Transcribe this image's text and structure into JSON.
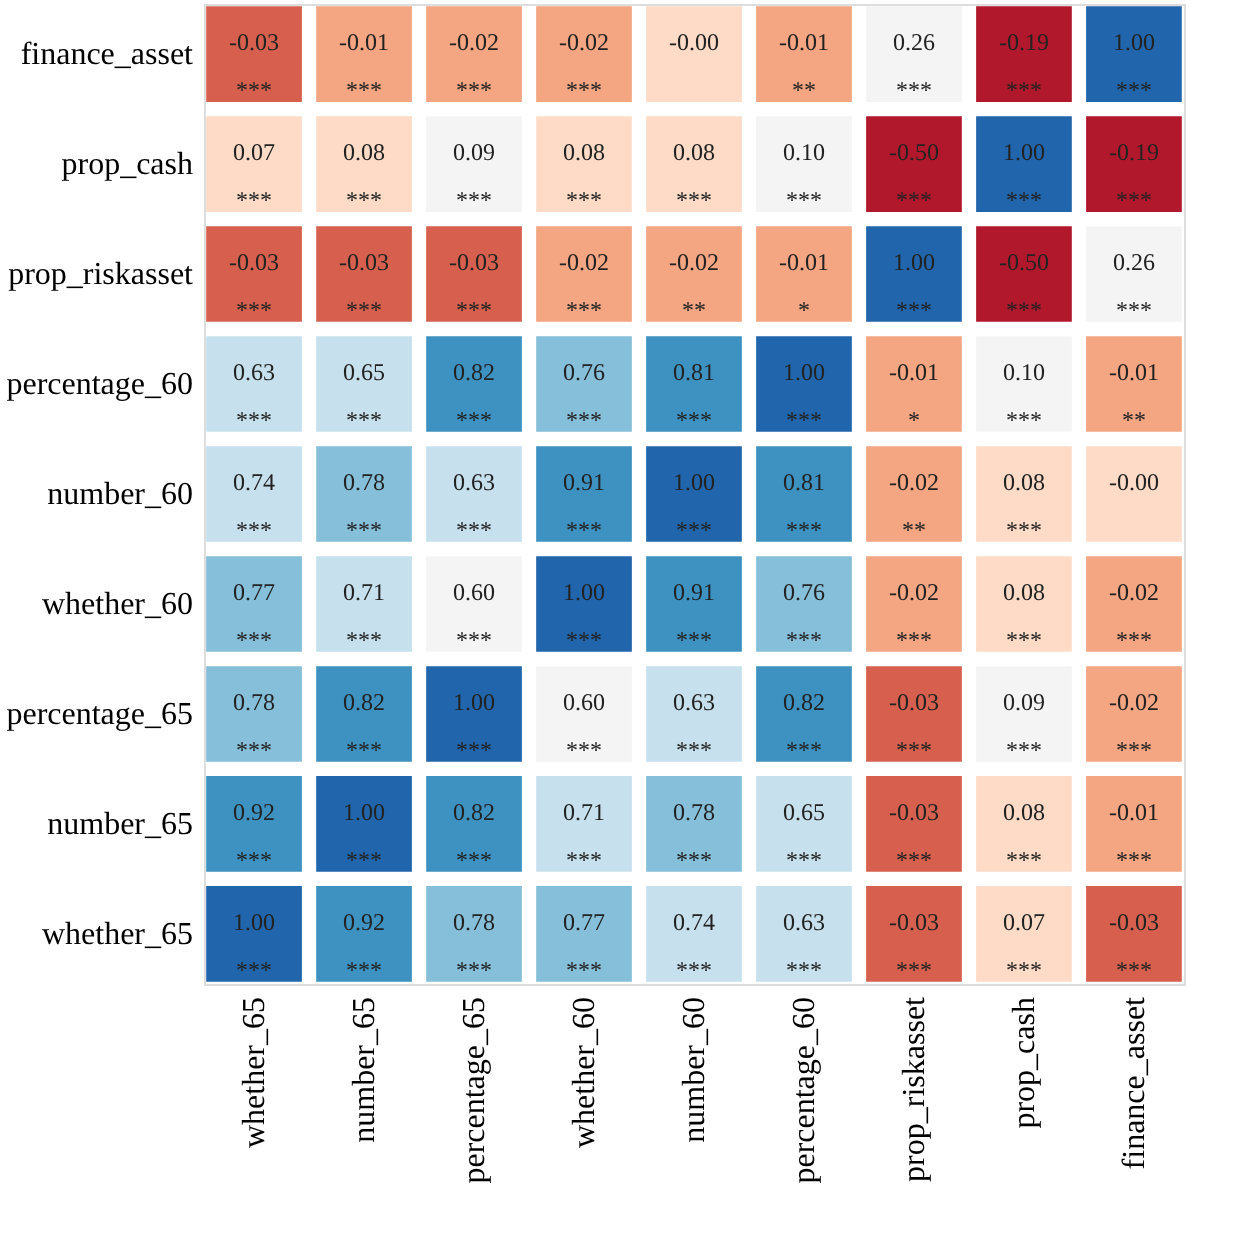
{
  "chart_data": {
    "type": "heatmap",
    "categories": [
      "whether_65",
      "number_65",
      "percentage_65",
      "whether_60",
      "number_60",
      "percentage_60",
      "prop_riskasset",
      "prop_cash",
      "finance_asset"
    ],
    "y_categories": [
      "finance_asset",
      "prop_cash",
      "prop_riskasset",
      "percentage_60",
      "number_60",
      "whether_60",
      "percentage_65",
      "number_65",
      "whether_65"
    ],
    "cells": [
      [
        -0.03,
        -0.01,
        -0.02,
        -0.02,
        -0.0,
        -0.01,
        0.26,
        -0.19,
        1.0
      ],
      [
        0.07,
        0.08,
        0.09,
        0.08,
        0.08,
        0.1,
        -0.5,
        1.0,
        -0.19
      ],
      [
        -0.03,
        -0.03,
        -0.03,
        -0.02,
        -0.02,
        -0.01,
        1.0,
        -0.5,
        0.26
      ],
      [
        0.63,
        0.65,
        0.82,
        0.76,
        0.81,
        1.0,
        -0.01,
        0.1,
        -0.01
      ],
      [
        0.74,
        0.78,
        0.63,
        0.91,
        1.0,
        0.81,
        -0.02,
        0.08,
        -0.0
      ],
      [
        0.77,
        0.71,
        0.6,
        1.0,
        0.91,
        0.76,
        -0.02,
        0.08,
        -0.02
      ],
      [
        0.78,
        0.82,
        1.0,
        0.6,
        0.63,
        0.82,
        -0.03,
        0.09,
        -0.02
      ],
      [
        0.92,
        1.0,
        0.82,
        0.71,
        0.78,
        0.65,
        -0.03,
        0.08,
        -0.01
      ],
      [
        1.0,
        0.92,
        0.78,
        0.77,
        0.74,
        0.63,
        -0.03,
        0.07,
        -0.03
      ]
    ],
    "cell_labels": [
      [
        "-0.03\n***",
        "-0.01\n***",
        "-0.02\n***",
        "-0.02\n***",
        "-0.00",
        "-0.01\n**",
        "0.26\n***",
        "-0.19\n***",
        "1.00\n***"
      ],
      [
        "0.07\n***",
        "0.08\n***",
        "0.09\n***",
        "0.08\n***",
        "0.08\n***",
        "0.10\n***",
        "-0.50\n***",
        "1.00\n***",
        "-0.19\n***"
      ],
      [
        "-0.03\n***",
        "-0.03\n***",
        "-0.03\n***",
        "-0.02\n***",
        "-0.02\n**",
        "-0.01\n*",
        "1.00\n***",
        "-0.50\n***",
        "0.26\n***"
      ],
      [
        "0.63\n***",
        "0.65\n***",
        "0.82\n***",
        "0.76\n***",
        "0.81\n***",
        "1.00\n***",
        "-0.01\n*",
        "0.10\n***",
        "-0.01\n**"
      ],
      [
        "0.74\n***",
        "0.78\n***",
        "0.63\n***",
        "0.91\n***",
        "1.00\n***",
        "0.81\n***",
        "-0.02\n**",
        "0.08\n***",
        "-0.00"
      ],
      [
        "0.77\n***",
        "0.71\n***",
        "0.60\n***",
        "1.00\n***",
        "0.91\n***",
        "0.76\n***",
        "-0.02\n***",
        "0.08\n***",
        "-0.02\n***"
      ],
      [
        "0.78\n***",
        "0.82\n***",
        "1.00\n***",
        "0.60\n***",
        "0.63\n***",
        "0.82\n***",
        "-0.03\n***",
        "0.09\n***",
        "-0.02\n***"
      ],
      [
        "0.92\n***",
        "1.00\n***",
        "0.82\n***",
        "0.71\n***",
        "0.78\n***",
        "0.65\n***",
        "-0.03\n***",
        "0.08\n***",
        "-0.01\n***"
      ],
      [
        "1.00\n***",
        "0.92\n***",
        "0.78\n***",
        "0.77\n***",
        "0.74\n***",
        "0.63\n***",
        "-0.03\n***",
        "0.07\n***",
        "-0.03\n***"
      ]
    ],
    "colors": [
      "#b2182b",
      "#d6604d",
      "#f4a582",
      "#fddbc7",
      "#f4f4f4",
      "#c6e1ed",
      "#86bfda",
      "#3d92c1",
      "#2166ac"
    ]
  }
}
